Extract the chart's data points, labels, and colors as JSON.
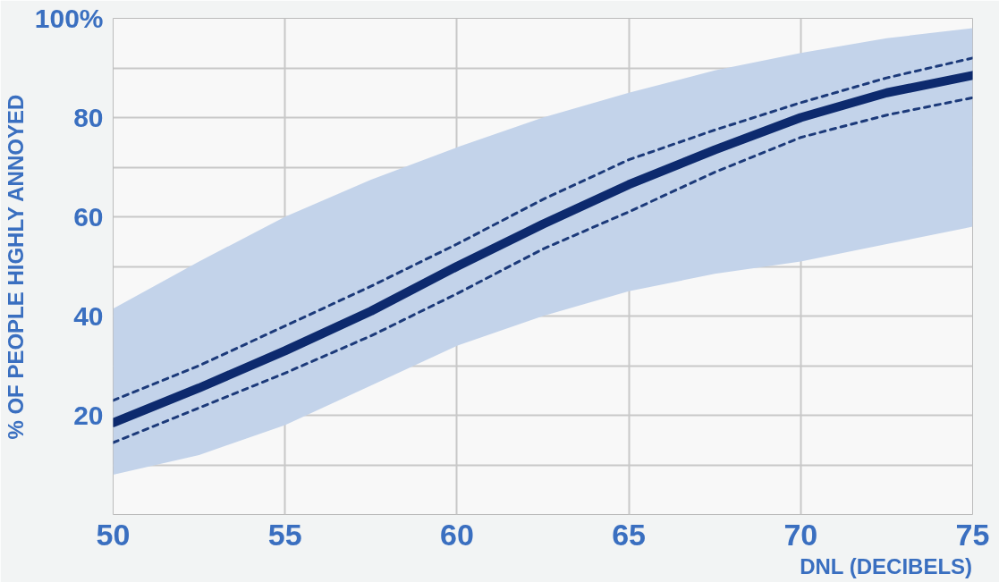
{
  "chart_data": {
    "type": "line",
    "xlabel": "DNL (DECIBELS)",
    "ylabel": "% OF PEOPLE HIGHLY ANNOYED",
    "x": [
      50,
      52.5,
      55,
      57.5,
      60,
      62.5,
      65,
      67.5,
      70,
      72.5,
      75
    ],
    "xlim": [
      50,
      75
    ],
    "xticks": [
      50,
      55,
      60,
      65,
      70,
      75
    ],
    "ylim": [
      0,
      100
    ],
    "yticks": [
      {
        "value": 0,
        "label": null
      },
      {
        "value": 10,
        "label": null
      },
      20,
      {
        "value": 30,
        "label": null
      },
      40,
      {
        "value": 50,
        "label": null
      },
      60,
      {
        "value": 70,
        "label": null
      },
      80,
      {
        "value": 90,
        "label": null
      },
      {
        "value": 100,
        "label": "100%"
      }
    ],
    "grid": true,
    "series": [
      {
        "color": "#0d2a6e",
        "line_style": "solid",
        "values": [
          18.5,
          25.5,
          33,
          41,
          50,
          58.5,
          66.5,
          73.5,
          80,
          85,
          88.5
        ],
        "lower": [
          8,
          12,
          18,
          26,
          34,
          40,
          45,
          48.5,
          51,
          54.5,
          58
        ],
        "upper": [
          41.5,
          51,
          60,
          67.5,
          74,
          80,
          85,
          89.5,
          93,
          96,
          98
        ]
      },
      {
        "color": "#1c3a7a",
        "line_style": "dashed",
        "values": [
          23,
          30,
          38,
          46,
          54.5,
          63.5,
          71.5,
          77.5,
          83,
          88,
          92
        ]
      },
      {
        "color": "#1c3a7a",
        "line_style": "dashed",
        "values": [
          14.5,
          21.5,
          28.5,
          36,
          44.5,
          53.5,
          61,
          69,
          76,
          80.5,
          84
        ]
      }
    ]
  }
}
